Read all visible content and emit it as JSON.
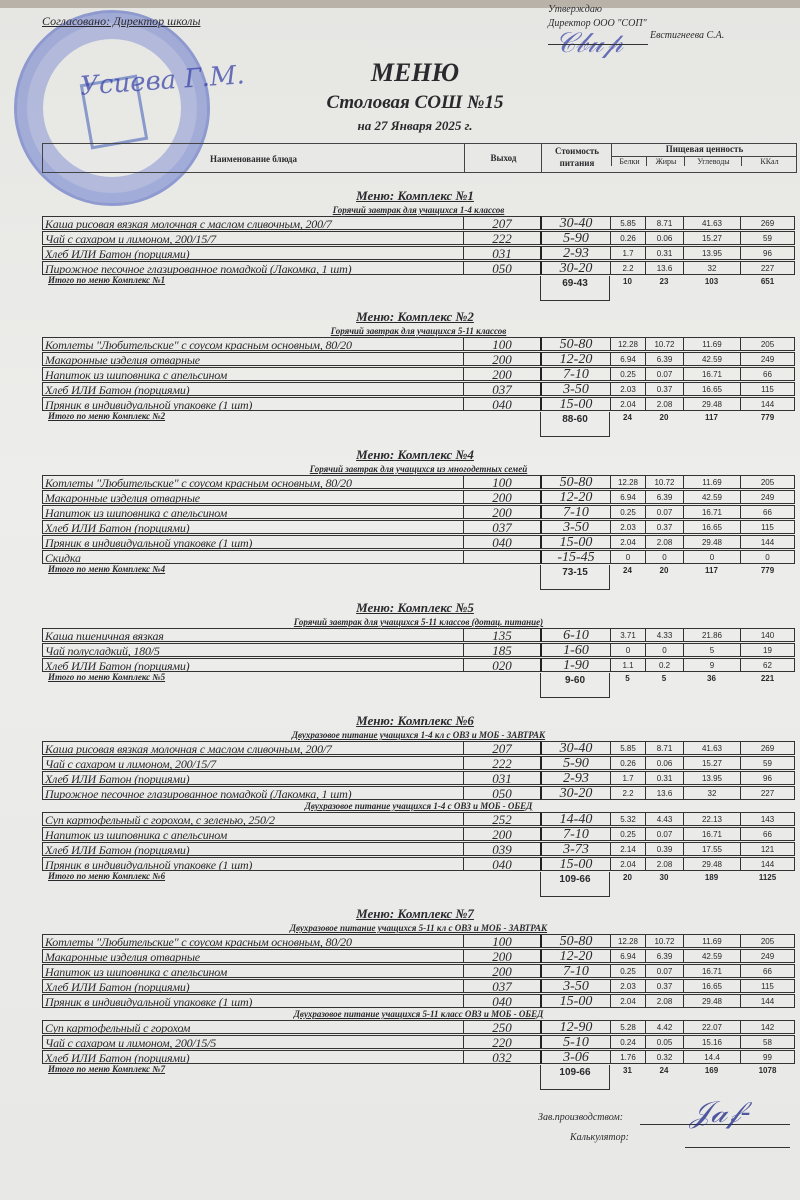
{
  "header": {
    "agreed": "Согласовано: Директор школы",
    "approve_line1": "Утверждаю",
    "approve_line2": "Директор ООО \"СОП\"",
    "approve_name": "Евстигнеева С.А.",
    "left_signature": "Усиева Г.М.",
    "title": "МЕНЮ",
    "subtitle": "Столовая СОШ №15",
    "date": "на 27 Января 2025 г."
  },
  "columns": {
    "name": "Наименование блюда",
    "yield": "Выход",
    "cost": "Стоимость питания",
    "nutrition": "Пищевая ценность",
    "proteins": "Белки",
    "fats": "Жиры",
    "carbs": "Углеводы",
    "kcal": "ККал"
  },
  "sections": [
    {
      "title": "Меню: Комплекс №1",
      "groups": [
        {
          "title": "Горячий завтрак для учащихся 1-4 классов",
          "rows": [
            [
              "Каша рисовая вязкая молочная с маслом сливочным, 200/7",
              "207",
              "30-40",
              "5.85",
              "8.71",
              "41.63",
              "269"
            ],
            [
              "Чай с сахаром и лимоном, 200/15/7",
              "222",
              "5-90",
              "0.26",
              "0.06",
              "15.27",
              "59"
            ],
            [
              "Хлеб ИЛИ Батон (порциями)",
              "031",
              "2-93",
              "1.7",
              "0.31",
              "13.95",
              "96"
            ],
            [
              "Пирожное песочное глазированное помадкой (Лакомка, 1 шт)",
              "050",
              "30-20",
              "2.2",
              "13.6",
              "32",
              "227"
            ]
          ]
        }
      ],
      "total": {
        "label": "Итого по меню Комплекс №1",
        "cost": "69-43",
        "proteins": "10",
        "fats": "23",
        "carbs": "103",
        "kcal": "651"
      }
    },
    {
      "title": "Меню: Комплекс №2",
      "groups": [
        {
          "title": "Горячий завтрак для учащихся 5-11 классов",
          "rows": [
            [
              "Котлеты  \"Любительские\" с соусом красным основным, 80/20",
              "100",
              "50-80",
              "12.28",
              "10.72",
              "11.69",
              "205"
            ],
            [
              "Макаронные изделия отварные",
              "200",
              "12-20",
              "6.94",
              "6.39",
              "42.59",
              "249"
            ],
            [
              "Напиток из шиповника с апельсином",
              "200",
              "7-10",
              "0.25",
              "0.07",
              "16.71",
              "66"
            ],
            [
              "Хлеб ИЛИ Батон (порциями)",
              "037",
              "3-50",
              "2.03",
              "0.37",
              "16.65",
              "115"
            ],
            [
              "Пряник в индивидуальной упаковке (1 шт)",
              "040",
              "15-00",
              "2.04",
              "2.08",
              "29.48",
              "144"
            ]
          ]
        }
      ],
      "total": {
        "label": "Итого по меню Комплекс №2",
        "cost": "88-60",
        "proteins": "24",
        "fats": "20",
        "carbs": "117",
        "kcal": "779"
      }
    },
    {
      "title": "Меню: Комплекс №4",
      "groups": [
        {
          "title": "Горячий завтрак для учащихся из многодетных семей",
          "rows": [
            [
              "Котлеты  \"Любительские\" с соусом красным основным, 80/20",
              "100",
              "50-80",
              "12.28",
              "10.72",
              "11.69",
              "205"
            ],
            [
              "Макаронные изделия отварные",
              "200",
              "12-20",
              "6.94",
              "6.39",
              "42.59",
              "249"
            ],
            [
              "Напиток из шиповника с апельсином",
              "200",
              "7-10",
              "0.25",
              "0.07",
              "16.71",
              "66"
            ],
            [
              "Хлеб ИЛИ Батон (порциями)",
              "037",
              "3-50",
              "2.03",
              "0.37",
              "16.65",
              "115"
            ],
            [
              "Пряник в индивидуальной упаковке (1 шт)",
              "040",
              "15-00",
              "2.04",
              "2.08",
              "29.48",
              "144"
            ],
            [
              "Скидка",
              "",
              "-15-45",
              "0",
              "0",
              "0",
              "0"
            ]
          ]
        }
      ],
      "total": {
        "label": "Итого по меню Комплекс №4",
        "cost": "73-15",
        "proteins": "24",
        "fats": "20",
        "carbs": "117",
        "kcal": "779"
      }
    },
    {
      "title": "Меню: Комплекс №5",
      "groups": [
        {
          "title": "Горячий завтрак для учащихся 5-11 классов (дотац. питание)",
          "rows": [
            [
              "Каша пшеничная вязкая",
              "135",
              "6-10",
              "3.71",
              "4.33",
              "21.86",
              "140"
            ],
            [
              "Чай полусладкий, 180/5",
              "185",
              "1-60",
              "0",
              "0",
              "5",
              "19"
            ],
            [
              "Хлеб ИЛИ Батон (порциями)",
              "020",
              "1-90",
              "1.1",
              "0.2",
              "9",
              "62"
            ]
          ]
        }
      ],
      "total": {
        "label": "Итого по меню Комплекс №5",
        "cost": "9-60",
        "proteins": "5",
        "fats": "5",
        "carbs": "36",
        "kcal": "221"
      }
    },
    {
      "title": "Меню: Комплекс №6",
      "groups": [
        {
          "title": "Двухразовое питание учащихся 1-4 кл с ОВЗ и МОБ - ЗАВТРАК",
          "rows": [
            [
              "Каша рисовая вязкая молочная с маслом сливочным, 200/7",
              "207",
              "30-40",
              "5.85",
              "8.71",
              "41.63",
              "269"
            ],
            [
              "Чай с сахаром и лимоном, 200/15/7",
              "222",
              "5-90",
              "0.26",
              "0.06",
              "15.27",
              "59"
            ],
            [
              "Хлеб ИЛИ Батон (порциями)",
              "031",
              "2-93",
              "1.7",
              "0.31",
              "13.95",
              "96"
            ],
            [
              "Пирожное песочное глазированное помадкой (Лакомка, 1 шт)",
              "050",
              "30-20",
              "2.2",
              "13.6",
              "32",
              "227"
            ]
          ]
        },
        {
          "title": "Двухразовое питание учащихся 1-4 с ОВЗ и МОБ - ОБЕД",
          "rows": [
            [
              "Суп картофельный с горохом, с зеленью, 250/2",
              "252",
              "14-40",
              "5.32",
              "4.43",
              "22.13",
              "143"
            ],
            [
              "Напиток из шиповника с апельсином",
              "200",
              "7-10",
              "0.25",
              "0.07",
              "16.71",
              "66"
            ],
            [
              "Хлеб ИЛИ Батон (порциями)",
              "039",
              "3-73",
              "2.14",
              "0.39",
              "17.55",
              "121"
            ],
            [
              "Пряник в индивидуальной упаковке (1 шт)",
              "040",
              "15-00",
              "2.04",
              "2.08",
              "29.48",
              "144"
            ]
          ]
        }
      ],
      "total": {
        "label": "Итого по меню Комплекс №6",
        "cost": "109-66",
        "proteins": "20",
        "fats": "30",
        "carbs": "189",
        "kcal": "1125"
      }
    },
    {
      "title": "Меню: Комплекс №7",
      "groups": [
        {
          "title": "Двухразовое питание учащихся 5-11 кл с  ОВЗ и МОБ - ЗАВТРАК",
          "rows": [
            [
              "Котлеты  \"Любительские\" с соусом красным основным, 80/20",
              "100",
              "50-80",
              "12.28",
              "10.72",
              "11.69",
              "205"
            ],
            [
              "Макаронные изделия отварные",
              "200",
              "12-20",
              "6.94",
              "6.39",
              "42.59",
              "249"
            ],
            [
              "Напиток из шиповника с апельсином",
              "200",
              "7-10",
              "0.25",
              "0.07",
              "16.71",
              "66"
            ],
            [
              "Хлеб ИЛИ Батон (порциями)",
              "037",
              "3-50",
              "2.03",
              "0.37",
              "16.65",
              "115"
            ],
            [
              "Пряник в индивидуальной упаковке (1 шт)",
              "040",
              "15-00",
              "2.04",
              "2.08",
              "29.48",
              "144"
            ]
          ]
        },
        {
          "title": "Двухразовое питание учащихся 5-11 класс ОВЗ и МОБ - ОБЕД",
          "rows": [
            [
              "Суп картофельный с горохом",
              "250",
              "12-90",
              "5.28",
              "4.42",
              "22.07",
              "142"
            ],
            [
              "Чай с сахаром и лимоном, 200/15/5",
              "220",
              "5-10",
              "0.24",
              "0.05",
              "15.16",
              "58"
            ],
            [
              "Хлеб ИЛИ Батон (порциями)",
              "032",
              "3-06",
              "1.76",
              "0.32",
              "14.4",
              "99"
            ]
          ]
        }
      ],
      "total": {
        "label": "Итого по меню Комплекс №7",
        "cost": "109-66",
        "proteins": "31",
        "fats": "24",
        "carbs": "169",
        "kcal": "1078"
      }
    }
  ],
  "footer": {
    "production_head": "Зав.производством:",
    "calculator": "Калькулятор:"
  }
}
